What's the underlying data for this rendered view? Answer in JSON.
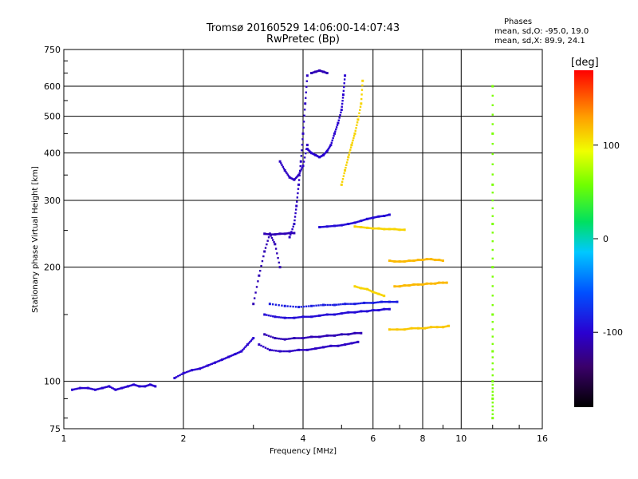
{
  "header": {
    "title_line1": "Tromsø 20160529 14:06:00-14:07:43",
    "title_line2": "RwPretec (Bp)"
  },
  "stats": {
    "heading": "Phases",
    "o_line": "mean, sd,O: -95.0, 19.0",
    "x_line": "mean, sd,X:  89.9, 24.1"
  },
  "colorbar": {
    "label": "[deg]",
    "ticks": [
      {
        "label": "100",
        "value": 100
      },
      {
        "label": "0",
        "value": 0
      },
      {
        "label": "-100",
        "value": -100
      }
    ],
    "range": [
      -180,
      180
    ]
  },
  "chart_data": {
    "type": "scatter",
    "title": "Tromsø 20160529 14:06:00-14:07:43",
    "subtitle": "RwPretec (Bp)",
    "xlabel": "Frequency [MHz]",
    "ylabel": "Stationary phase Virtual Height [km]",
    "xscale": "log",
    "yscale": "log",
    "xlim": [
      1,
      16
    ],
    "ylim": [
      75,
      750
    ],
    "grid": true,
    "x_ticks": [
      {
        "label": "1",
        "value": 1
      },
      {
        "label": "2",
        "value": 2
      },
      {
        "label": "4",
        "value": 4
      },
      {
        "label": "6",
        "value": 6
      },
      {
        "label": "8",
        "value": 8
      },
      {
        "label": "10",
        "value": 10
      },
      {
        "label": "16",
        "value": 16
      }
    ],
    "y_ticks": [
      {
        "label": "750",
        "value": 750
      },
      {
        "label": "600",
        "value": 600
      },
      {
        "label": "500",
        "value": 500
      },
      {
        "label": "400",
        "value": 400
      },
      {
        "label": "300",
        "value": 300
      },
      {
        "label": "200",
        "value": 200
      },
      {
        "label": "100",
        "value": 100
      },
      {
        "label": "75",
        "value": 75
      }
    ],
    "color_by": "phase [deg]",
    "traces": [
      {
        "x": [
          1.05,
          1.1,
          1.15,
          1.2,
          1.25,
          1.3,
          1.35,
          1.4,
          1.45,
          1.5,
          1.55,
          1.6,
          1.65,
          1.7
        ],
        "y": [
          95,
          96,
          96,
          95,
          96,
          97,
          95,
          96,
          97,
          98,
          97,
          97,
          98,
          97
        ],
        "phase": -100
      },
      {
        "x": [
          1.9,
          2.0,
          2.1,
          2.2,
          2.3,
          2.4,
          2.5,
          2.6,
          2.7,
          2.8,
          2.9,
          3.0
        ],
        "y": [
          102,
          105,
          107,
          108,
          110,
          112,
          114,
          116,
          118,
          120,
          125,
          130
        ],
        "phase": -100
      },
      {
        "x": [
          3.1,
          3.3,
          3.5,
          3.7,
          3.9,
          4.1,
          4.3,
          4.5,
          4.7,
          4.9,
          5.1,
          5.3,
          5.5
        ],
        "y": [
          125,
          121,
          120,
          120,
          121,
          121,
          122,
          123,
          124,
          124,
          125,
          126,
          127
        ],
        "phase": -105
      },
      {
        "x": [
          3.2,
          3.4,
          3.6,
          3.8,
          4.0,
          4.2,
          4.4,
          4.6,
          4.8,
          5.0,
          5.2,
          5.4,
          5.6
        ],
        "y": [
          133,
          130,
          129,
          130,
          130,
          131,
          131,
          132,
          132,
          133,
          133,
          134,
          134
        ],
        "phase": -110
      },
      {
        "x": [
          3.2,
          3.4,
          3.6,
          3.8,
          4.0,
          4.2,
          4.4,
          4.6,
          4.8,
          5.0,
          5.2,
          5.4,
          5.6,
          5.8,
          6.0,
          6.2,
          6.4,
          6.6
        ],
        "y": [
          150,
          148,
          147,
          147,
          148,
          148,
          149,
          150,
          150,
          151,
          152,
          152,
          153,
          153,
          154,
          154,
          155,
          155
        ],
        "phase": -95
      },
      {
        "x": [
          3.3,
          3.6,
          3.9,
          4.2,
          4.5,
          4.8,
          5.1,
          5.4,
          5.7,
          6.0,
          6.3,
          6.6,
          6.9
        ],
        "y": [
          160,
          158,
          157,
          158,
          159,
          159,
          160,
          160,
          161,
          161,
          162,
          162,
          162
        ],
        "phase": -85
      },
      {
        "x": [
          3.2,
          3.3,
          3.4,
          3.5,
          3.6,
          3.7,
          3.8
        ],
        "y": [
          245,
          244,
          244,
          245,
          245,
          246,
          246
        ],
        "phase": -110
      },
      {
        "x": [
          3.0,
          3.1,
          3.2,
          3.3,
          3.4,
          3.5
        ],
        "y": [
          160,
          190,
          220,
          245,
          230,
          200
        ],
        "phase": -110
      },
      {
        "x": [
          3.5,
          3.6,
          3.7,
          3.8,
          3.9,
          4.0,
          4.1
        ],
        "y": [
          380,
          360,
          345,
          340,
          350,
          370,
          420
        ],
        "phase": -105
      },
      {
        "x": [
          3.7,
          3.8,
          3.85,
          3.9,
          3.95,
          4.0,
          4.05,
          4.1
        ],
        "y": [
          240,
          260,
          290,
          330,
          380,
          450,
          540,
          640
        ],
        "phase": -105
      },
      {
        "x": [
          4.1,
          4.2,
          4.3,
          4.4,
          4.5,
          4.6,
          4.7,
          4.8,
          4.9,
          5.0,
          5.05,
          5.1
        ],
        "y": [
          410,
          400,
          395,
          390,
          395,
          405,
          420,
          450,
          480,
          520,
          570,
          640
        ],
        "phase": -100
      },
      {
        "x": [
          4.2,
          4.3,
          4.4,
          4.5,
          4.6
        ],
        "y": [
          650,
          655,
          660,
          655,
          650
        ],
        "phase": -110
      },
      {
        "x": [
          5.0,
          5.1,
          5.2,
          5.3,
          5.4,
          5.5,
          5.6,
          5.65
        ],
        "y": [
          330,
          360,
          390,
          420,
          450,
          490,
          540,
          620
        ],
        "phase": 110
      },
      {
        "x": [
          4.4,
          4.6,
          4.8,
          5.0,
          5.2,
          5.4,
          5.6,
          5.8,
          6.0,
          6.2,
          6.4,
          6.6
        ],
        "y": [
          255,
          256,
          257,
          258,
          260,
          262,
          265,
          268,
          270,
          272,
          273,
          275
        ],
        "phase": -95
      },
      {
        "x": [
          5.4,
          5.6,
          5.8,
          6.0,
          6.2,
          6.4,
          6.6,
          6.8,
          7.0,
          7.2
        ],
        "y": [
          256,
          255,
          254,
          253,
          253,
          252,
          252,
          252,
          251,
          251
        ],
        "phase": 110
      },
      {
        "x": [
          6.6,
          6.8,
          7.0,
          7.2,
          7.4,
          7.6,
          7.8,
          8.0,
          8.2,
          8.4,
          8.6,
          8.8,
          9.0
        ],
        "y": [
          208,
          207,
          207,
          207,
          208,
          208,
          209,
          209,
          210,
          210,
          209,
          209,
          208
        ],
        "phase": 120
      },
      {
        "x": [
          6.8,
          7.0,
          7.2,
          7.4,
          7.6,
          7.8,
          8.0,
          8.2,
          8.4,
          8.6,
          8.8,
          9.0,
          9.2
        ],
        "y": [
          178,
          178,
          179,
          179,
          180,
          180,
          180,
          181,
          181,
          181,
          182,
          182,
          182
        ],
        "phase": 120
      },
      {
        "x": [
          6.6,
          6.9,
          7.2,
          7.5,
          7.8,
          8.1,
          8.4,
          8.7,
          9.0,
          9.3
        ],
        "y": [
          137,
          137,
          137,
          138,
          138,
          138,
          139,
          139,
          139,
          140
        ],
        "phase": 115
      },
      {
        "x": [
          5.4,
          5.6,
          5.8,
          6.0,
          6.2,
          6.4
        ],
        "y": [
          178,
          176,
          175,
          172,
          170,
          168
        ],
        "phase": 110
      },
      {
        "x": [
          12.0,
          12.0,
          12.0,
          12.0,
          12.0,
          12.0,
          12.0,
          12.0,
          12.0,
          12.0
        ],
        "y": [
          80,
          90,
          100,
          120,
          150,
          200,
          260,
          330,
          450,
          600
        ],
        "phase": 60
      }
    ]
  }
}
